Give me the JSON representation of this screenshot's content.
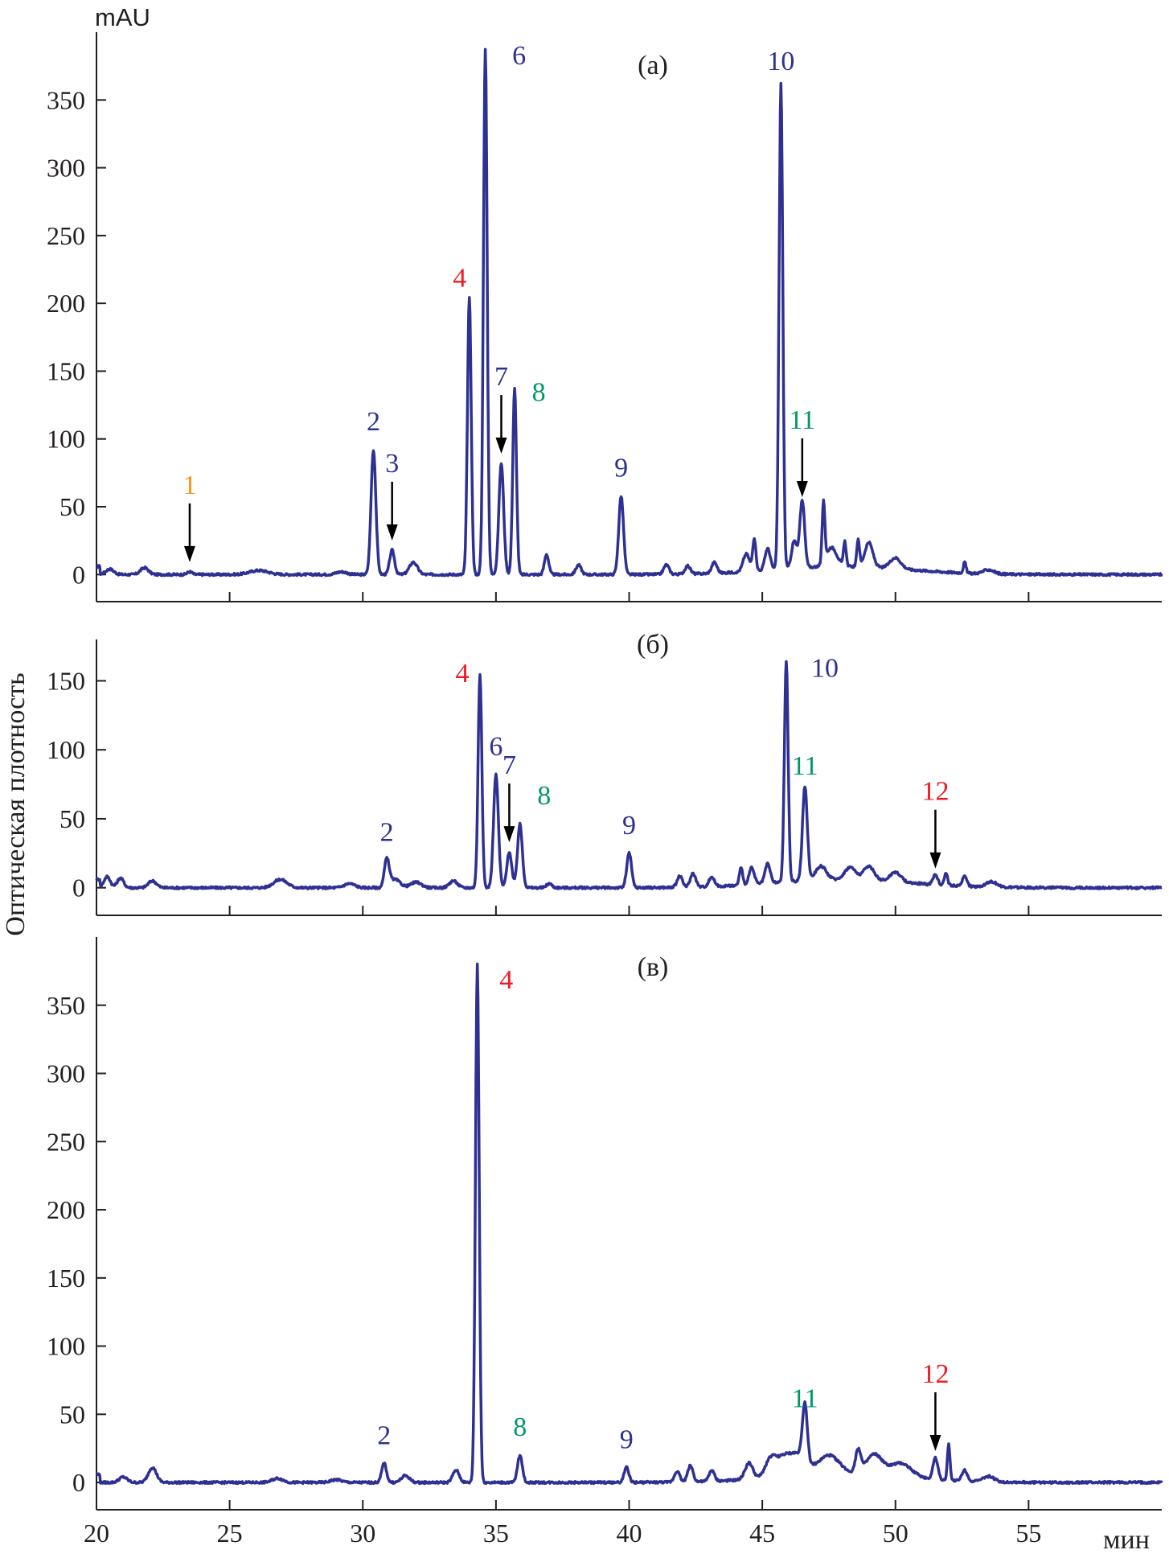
{
  "figure": {
    "ylabel": "Оптическая плотность",
    "yunit": "mAU",
    "xunit": "мин",
    "colors": {
      "trace": "#2e3192",
      "blue_label": "#2e3192",
      "red_label": "#ed1c24",
      "green_label": "#009966",
      "orange_label": "#f7941d",
      "axis": "#231f20"
    }
  },
  "chart_data": [
    {
      "type": "line",
      "panel_label": "(а)",
      "xlim": [
        20,
        60
      ],
      "ylim": [
        -20,
        400
      ],
      "xticks": [
        20,
        25,
        30,
        35,
        40,
        45,
        50,
        55
      ],
      "yticks": [
        0,
        50,
        100,
        150,
        200,
        250,
        300,
        350
      ],
      "peaks": [
        {
          "label": "1",
          "x": 23.5,
          "y": 2,
          "color": "orange",
          "arrow": true
        },
        {
          "label": "2",
          "x": 30.4,
          "y": 92,
          "color": "blue"
        },
        {
          "label": "3",
          "x": 31.1,
          "y": 18,
          "color": "blue",
          "arrow": true
        },
        {
          "label": "4",
          "x": 34.0,
          "y": 205,
          "color": "red"
        },
        {
          "label": "6",
          "x": 34.6,
          "y": 388,
          "color": "blue"
        },
        {
          "label": "7",
          "x": 35.2,
          "y": 82,
          "color": "blue",
          "arrow": true
        },
        {
          "label": "8",
          "x": 35.7,
          "y": 137,
          "color": "green"
        },
        {
          "label": "9",
          "x": 39.7,
          "y": 58,
          "color": "blue"
        },
        {
          "label": "10",
          "x": 45.7,
          "y": 358,
          "color": "blue"
        },
        {
          "label": "11",
          "x": 46.5,
          "y": 50,
          "color": "green",
          "arrow": true
        }
      ]
    },
    {
      "type": "line",
      "panel_label": "(б)",
      "xlim": [
        20,
        60
      ],
      "ylim": [
        -20,
        180
      ],
      "xticks": [
        20,
        25,
        30,
        35,
        40,
        45,
        50,
        55
      ],
      "yticks": [
        0,
        50,
        100,
        150
      ],
      "peaks": [
        {
          "label": "2",
          "x": 30.9,
          "y": 20,
          "color": "blue"
        },
        {
          "label": "4",
          "x": 34.4,
          "y": 155,
          "color": "red"
        },
        {
          "label": "6",
          "x": 35.0,
          "y": 82,
          "color": "blue"
        },
        {
          "label": "7",
          "x": 35.5,
          "y": 26,
          "color": "blue",
          "arrow": true
        },
        {
          "label": "8",
          "x": 35.9,
          "y": 46,
          "color": "green"
        },
        {
          "label": "9",
          "x": 40.0,
          "y": 25,
          "color": "blue"
        },
        {
          "label": "10",
          "x": 45.9,
          "y": 160,
          "color": "blue"
        },
        {
          "label": "11",
          "x": 46.6,
          "y": 68,
          "color": "green"
        },
        {
          "label": "12",
          "x": 51.5,
          "y": 7,
          "color": "red",
          "arrow": true
        }
      ]
    },
    {
      "type": "line",
      "panel_label": "(в)",
      "xlim": [
        20,
        60
      ],
      "ylim": [
        -20,
        400
      ],
      "xticks": [
        20,
        25,
        30,
        35,
        40,
        45,
        50,
        55
      ],
      "xtick_labels": [
        "20",
        "25",
        "30",
        "35",
        "40",
        "45",
        "50",
        "55"
      ],
      "yticks": [
        0,
        50,
        100,
        150,
        200,
        250,
        300,
        350
      ],
      "peaks": [
        {
          "label": "2",
          "x": 30.8,
          "y": 14,
          "color": "blue"
        },
        {
          "label": "4",
          "x": 34.3,
          "y": 380,
          "color": "red"
        },
        {
          "label": "8",
          "x": 35.9,
          "y": 20,
          "color": "green"
        },
        {
          "label": "9",
          "x": 39.9,
          "y": 11,
          "color": "blue"
        },
        {
          "label": "11",
          "x": 46.6,
          "y": 41,
          "color": "green"
        },
        {
          "label": "12",
          "x": 51.5,
          "y": 16,
          "color": "red",
          "arrow": true
        }
      ]
    }
  ]
}
